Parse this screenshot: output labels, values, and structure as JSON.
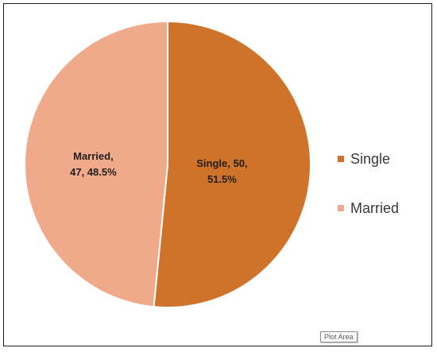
{
  "chart_data": {
    "type": "pie",
    "title": "",
    "categories": [
      "Single",
      "Married"
    ],
    "values": [
      50,
      47
    ],
    "percentages": [
      "51.5%",
      "48.5%"
    ],
    "data_labels": [
      {
        "lines": [
          "Single, 50,",
          "51.5%"
        ]
      },
      {
        "lines": [
          "Married,",
          "47, 48.5%"
        ]
      }
    ],
    "colors": [
      "#D0732A",
      "#F0A98A"
    ],
    "legend": [
      "Single",
      "Married"
    ],
    "legend_position": "right"
  },
  "tooltip": {
    "text": "Plot Area"
  }
}
